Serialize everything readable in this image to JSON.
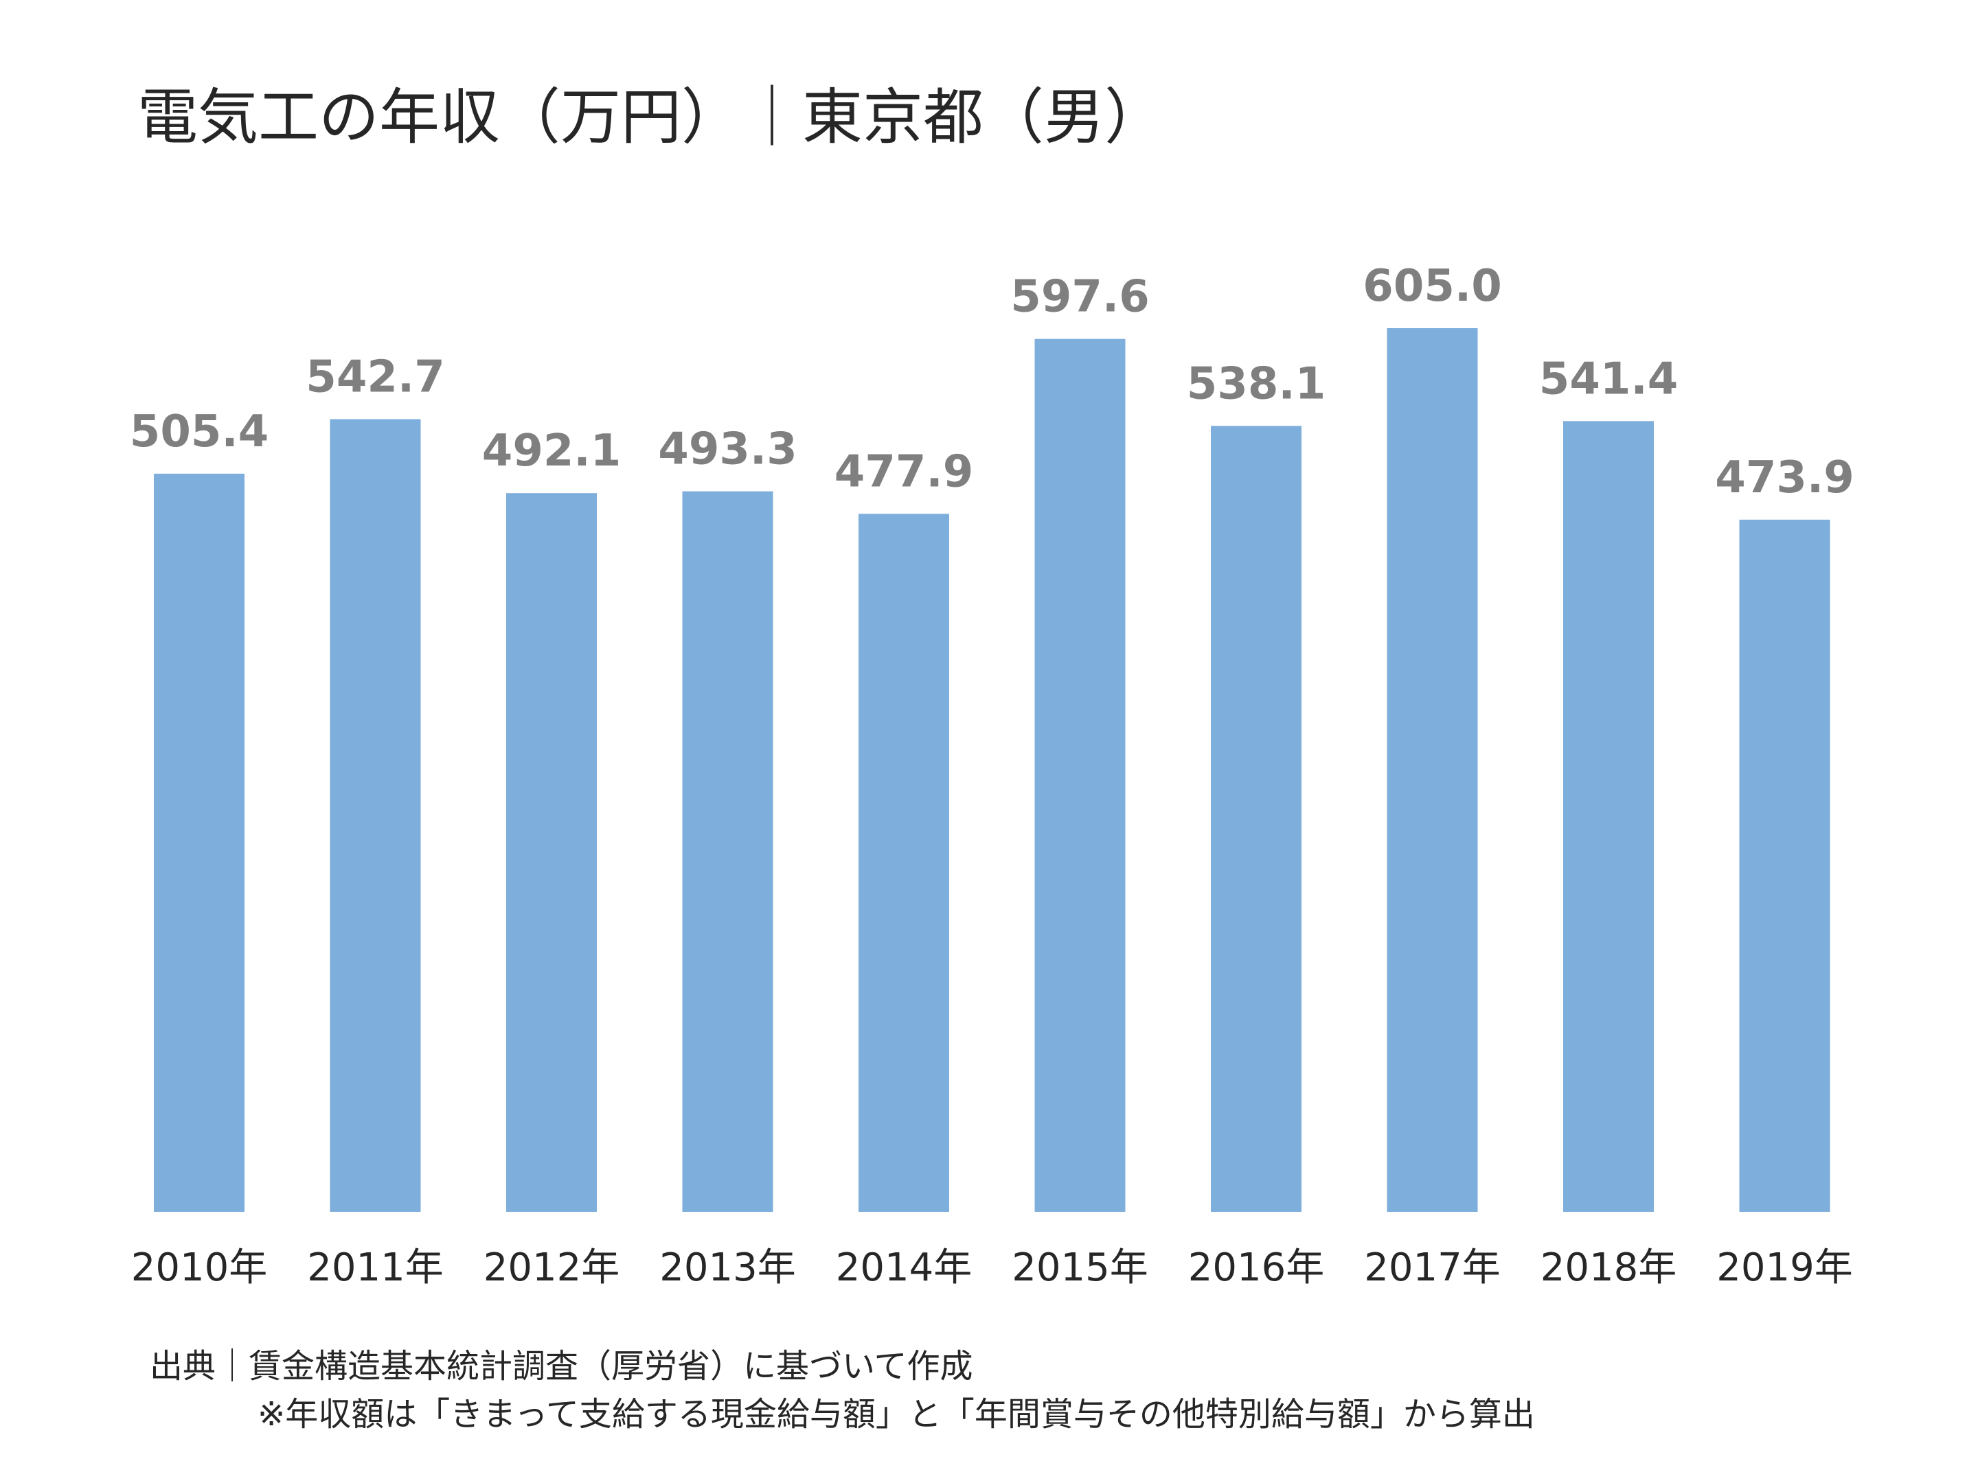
{
  "title": "電気工の年収（万円）｜東京都（男）",
  "source": "出典｜賃金構造基本統計調査（厚労省）に基づいて作成",
  "note": "※年収額は「きまって支給する現金給与額」と「年間賞与その他特別給与額」から算出",
  "colors": {
    "bar": "#7eaedc",
    "value_label": "#7f7f7f",
    "tick_label": "#262626"
  },
  "chart_data": {
    "type": "bar",
    "categories": [
      "2010年",
      "2011年",
      "2012年",
      "2013年",
      "2014年",
      "2015年",
      "2016年",
      "2017年",
      "2018年",
      "2019年"
    ],
    "values": [
      505.4,
      542.7,
      492.1,
      493.3,
      477.9,
      597.6,
      538.1,
      605.0,
      541.4,
      473.9
    ],
    "value_labels": [
      "505.4",
      "542.7",
      "492.1",
      "493.3",
      "477.9",
      "597.6",
      "538.1",
      "605.0",
      "541.4",
      "473.9"
    ],
    "title": "電気工の年収（万円）｜東京都（男）",
    "xlabel": "",
    "ylabel": "",
    "ylim": [
      0,
      605
    ],
    "grid": false,
    "legend": "none"
  }
}
